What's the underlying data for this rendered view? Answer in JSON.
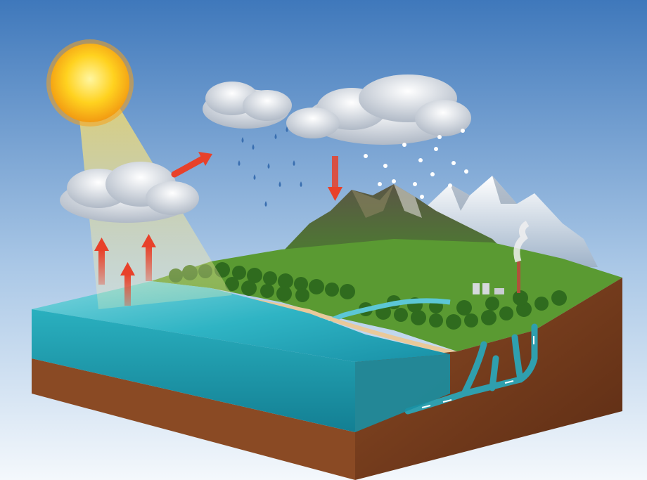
{
  "diagram": {
    "type": "water-cycle-illustration",
    "labels": [],
    "elements": [
      {
        "id": "sun",
        "icon": "sun-icon"
      },
      {
        "id": "evaporation",
        "icon": "arrow-up-icon",
        "count": 3
      },
      {
        "id": "transport",
        "icon": "arrow-right-icon"
      },
      {
        "id": "precipitation",
        "icon": "arrow-down-icon"
      },
      {
        "id": "rain",
        "icon": "raindrop-icon"
      },
      {
        "id": "snow",
        "icon": "snowflake-icon"
      },
      {
        "id": "groundwater",
        "icon": "arrow-icon"
      }
    ],
    "colors": {
      "sky_top": "#4f86c6",
      "sky_bottom": "#eef4fb",
      "sun": "#ffd21f",
      "arrow": "#e8412a",
      "ocean": "#1aa6b8",
      "soil": "#7a3e1e",
      "grass": "#4f8f2c",
      "mountain": "#6b6f4c",
      "snow": "#eef3fb",
      "groundwater": "#2f9fae"
    }
  }
}
